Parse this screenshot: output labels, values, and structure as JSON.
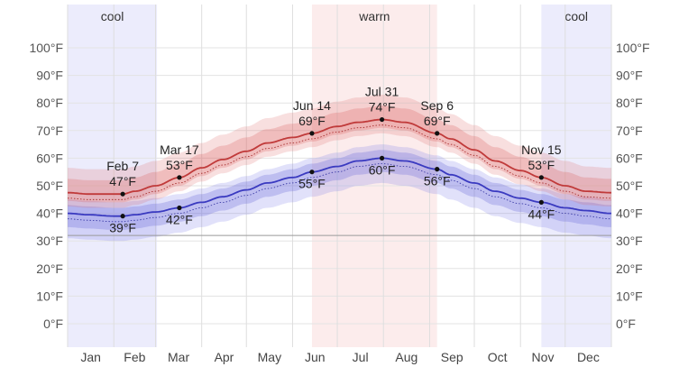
{
  "chart_data": {
    "type": "area",
    "title": "",
    "xlabel": "",
    "ylabel": "",
    "ylim": [
      -10,
      110
    ],
    "y_ticks": [
      0,
      10,
      20,
      30,
      40,
      50,
      60,
      70,
      80,
      90,
      100
    ],
    "y_tick_labels": [
      "0°F",
      "10°F",
      "20°F",
      "30°F",
      "40°F",
      "50°F",
      "60°F",
      "70°F",
      "80°F",
      "90°F",
      "100°F"
    ],
    "month_labels": [
      "Jan",
      "Feb",
      "Mar",
      "Apr",
      "May",
      "Jun",
      "Jul",
      "Aug",
      "Sep",
      "Oct",
      "Nov",
      "Dec"
    ],
    "reference_line_value": 32,
    "grid": true,
    "seasons": [
      {
        "label": "cool",
        "start": "Jan 1",
        "end": "Mar 2",
        "color": "#ececfc"
      },
      {
        "label": "warm",
        "start": "Jun 14",
        "end": "Sep 6",
        "color": "#fcecec"
      },
      {
        "label": "cool",
        "start": "Nov 15",
        "end": "Dec 31",
        "color": "#ececfc"
      }
    ],
    "series": [
      {
        "key": "high",
        "color": "#c03a3a",
        "x": [
          "Jan 1",
          "Jan 15",
          "Feb 1",
          "Feb 7",
          "Feb 15",
          "Mar 1",
          "Mar 17",
          "Apr 1",
          "Apr 15",
          "May 1",
          "May 15",
          "Jun 1",
          "Jun 14",
          "Jul 1",
          "Jul 15",
          "Jul 31",
          "Aug 15",
          "Sep 6",
          "Sep 15",
          "Oct 1",
          "Oct 15",
          "Nov 1",
          "Nov 15",
          "Dec 1",
          "Dec 15",
          "Dec 31"
        ],
        "values": [
          47.5,
          47,
          47,
          47,
          48,
          50,
          53,
          56.5,
          59.5,
          62.5,
          65.5,
          67.5,
          69,
          71.5,
          73,
          74,
          73,
          69,
          67,
          63,
          59,
          55.5,
          53,
          50,
          48,
          47.5
        ]
      },
      {
        "key": "low",
        "color": "#3a3ac0",
        "x": [
          "Jan 1",
          "Jan 15",
          "Feb 1",
          "Feb 7",
          "Feb 15",
          "Mar 1",
          "Mar 17",
          "Apr 1",
          "Apr 15",
          "May 1",
          "May 15",
          "Jun 1",
          "Jun 14",
          "Jul 1",
          "Jul 15",
          "Jul 31",
          "Aug 15",
          "Sep 6",
          "Sep 15",
          "Oct 1",
          "Oct 15",
          "Nov 1",
          "Nov 15",
          "Dec 1",
          "Dec 15",
          "Dec 31"
        ],
        "values": [
          40,
          39.5,
          39,
          39,
          39.5,
          40.5,
          42,
          44,
          46,
          48.5,
          51,
          53,
          55,
          57,
          59,
          60,
          59,
          56,
          54,
          51,
          48,
          45.5,
          44,
          42,
          41,
          40
        ]
      }
    ],
    "annotations": [
      {
        "x": "Feb 7",
        "series": "high",
        "date_label": "Feb 7",
        "value_label": "47°F"
      },
      {
        "x": "Mar 17",
        "series": "high",
        "date_label": "Mar 17",
        "value_label": "53°F"
      },
      {
        "x": "Jun 14",
        "series": "high",
        "date_label": "Jun 14",
        "value_label": "69°F"
      },
      {
        "x": "Jul 31",
        "series": "high",
        "date_label": "Jul 31",
        "value_label": "74°F"
      },
      {
        "x": "Sep 6",
        "series": "high",
        "date_label": "Sep 6",
        "value_label": "69°F"
      },
      {
        "x": "Nov 15",
        "series": "high",
        "date_label": "Nov 15",
        "value_label": "53°F"
      },
      {
        "x": "Feb 7",
        "series": "low",
        "date_label": "",
        "value_label": "39°F"
      },
      {
        "x": "Mar 17",
        "series": "low",
        "date_label": "",
        "value_label": "42°F"
      },
      {
        "x": "Jun 14",
        "series": "low",
        "date_label": "",
        "value_label": "55°F"
      },
      {
        "x": "Jul 31",
        "series": "low",
        "date_label": "",
        "value_label": "60°F"
      },
      {
        "x": "Sep 6",
        "series": "low",
        "date_label": "",
        "value_label": "56°F"
      },
      {
        "x": "Nov 15",
        "series": "low",
        "date_label": "",
        "value_label": "44°F"
      }
    ]
  }
}
